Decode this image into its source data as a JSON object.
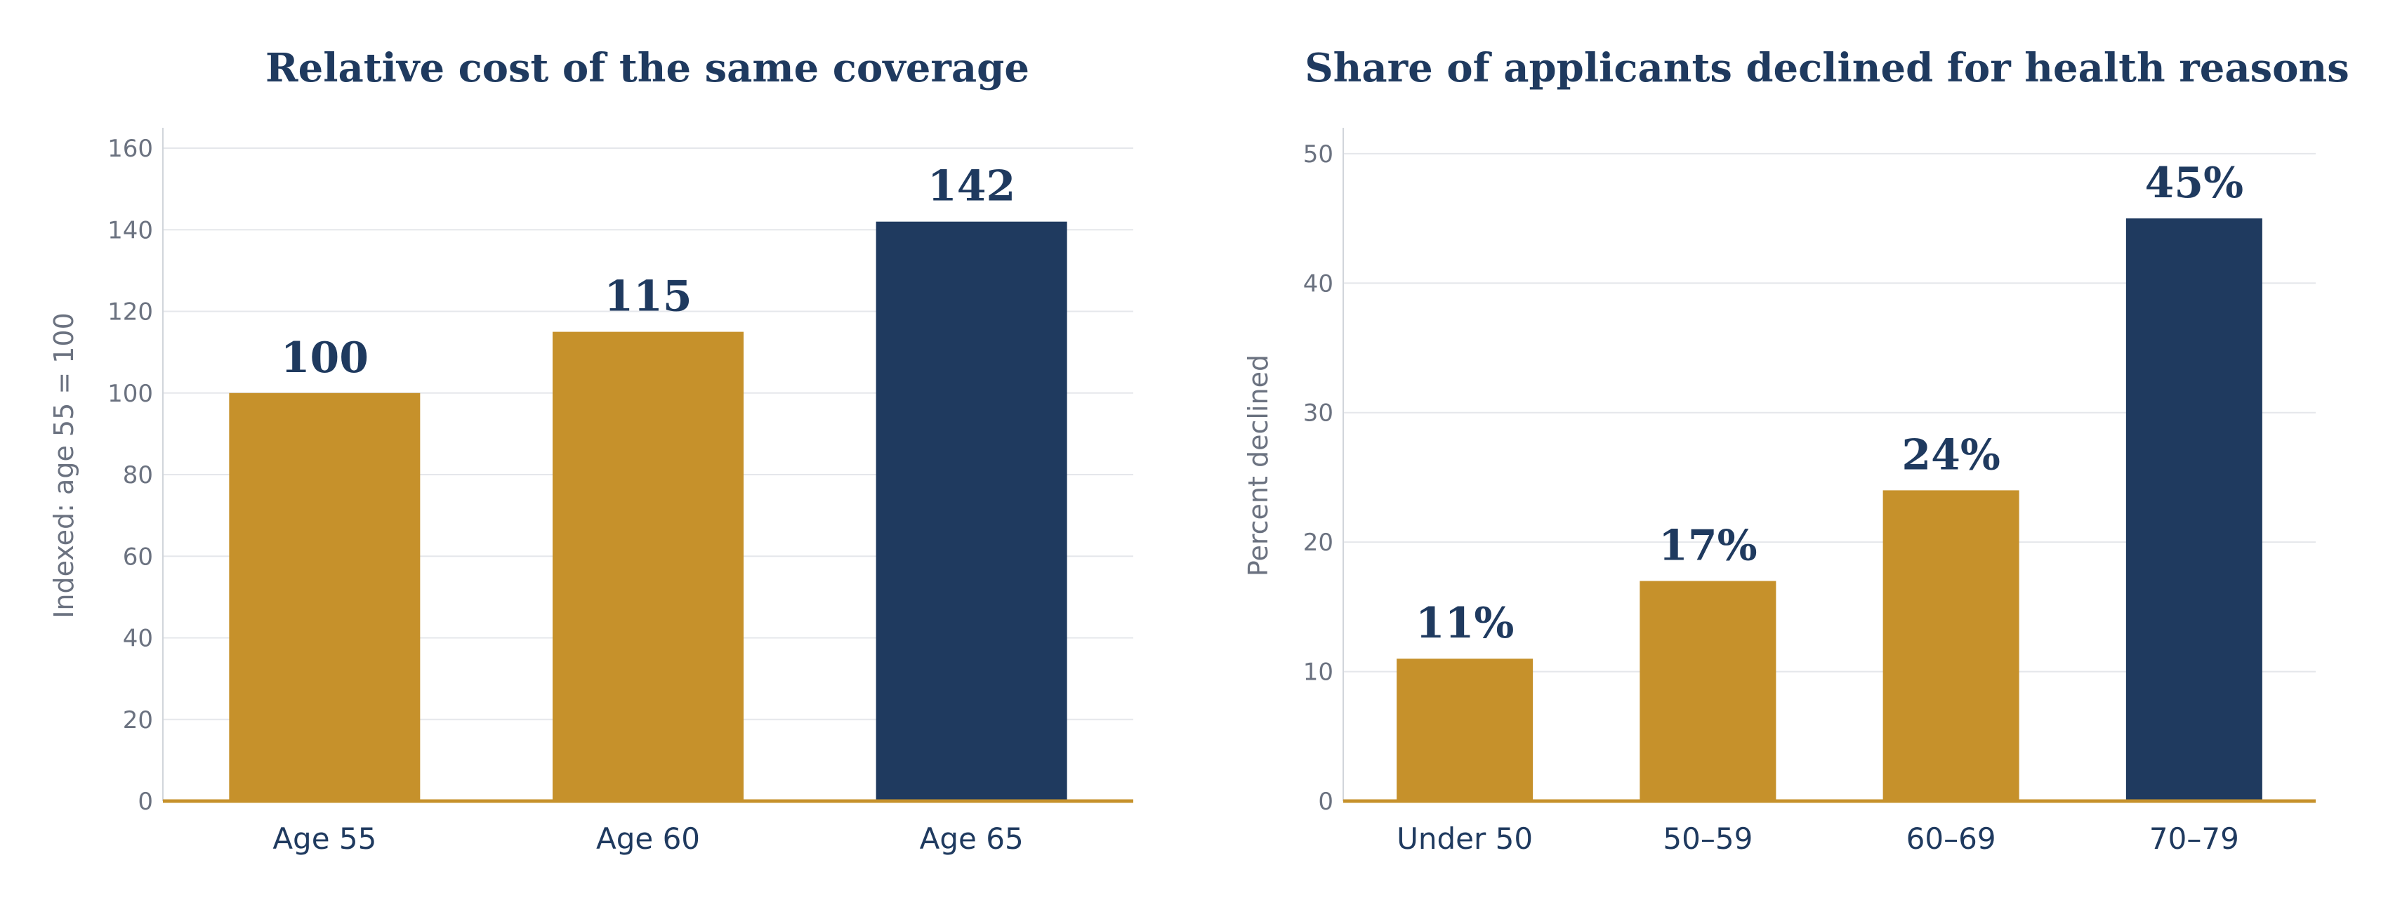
{
  "colors": {
    "gold": "#c6912b",
    "navy": "#1f3a5f"
  },
  "chart_data": [
    {
      "type": "bar",
      "title": "Relative cost of the same coverage",
      "xlabel": "",
      "ylabel": "Indexed:  age 55 = 100",
      "categories": [
        "Age 55",
        "Age 60",
        "Age 65"
      ],
      "values": [
        100,
        115,
        142
      ],
      "value_labels": [
        "100",
        "115",
        "142"
      ],
      "highlight_index": 2,
      "ylim": [
        0,
        165
      ],
      "yticks": [
        0,
        20,
        40,
        60,
        80,
        100,
        120,
        140,
        160
      ],
      "grid": true
    },
    {
      "type": "bar",
      "title": "Share of applicants declined for health reasons",
      "xlabel": "",
      "ylabel": "Percent declined",
      "categories": [
        "Under 50",
        "50–59",
        "60–69",
        "70–79"
      ],
      "values": [
        11,
        17,
        24,
        45
      ],
      "value_labels": [
        "11%",
        "17%",
        "24%",
        "45%"
      ],
      "highlight_index": 3,
      "ylim": [
        0,
        52
      ],
      "yticks": [
        0,
        10,
        20,
        30,
        40,
        50
      ],
      "grid": true
    }
  ]
}
